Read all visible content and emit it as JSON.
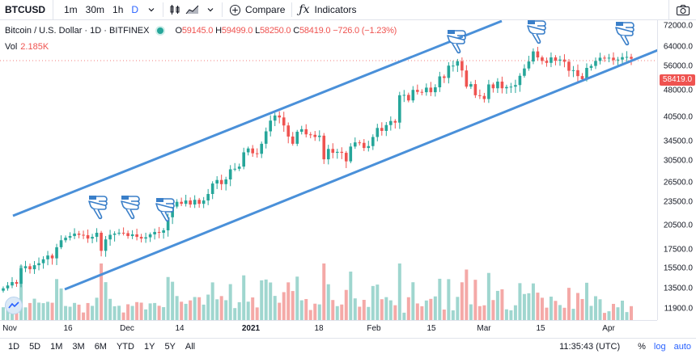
{
  "toolbar": {
    "symbol": "BTCUSD",
    "intervals": [
      "1m",
      "30m",
      "1h",
      "D"
    ],
    "active_interval": "D",
    "compare_label": "Compare",
    "indicators_label": "Indicators"
  },
  "legend": {
    "title": "Bitcoin / U.S. Dollar · 1D · BITFINEX",
    "open_k": "O",
    "open": "59145.0",
    "high_k": "H",
    "high": "59499.0",
    "low_k": "L",
    "low": "58250.0",
    "close_k": "C",
    "close": "58419.0",
    "change": "−726.0 (−1.23%)",
    "vol_label": "Vol",
    "vol_value": "2.185K"
  },
  "price_scale": {
    "labels": [
      "72000.0",
      "64000.0",
      "56000.0",
      "48000.0",
      "40500.0",
      "34500.0",
      "30500.0",
      "26500.0",
      "23500.0",
      "20500.0",
      "17500.0",
      "15500.0",
      "13500.0",
      "11900.0"
    ],
    "last_price": "58419.0"
  },
  "time_axis": {
    "labels": [
      "Nov",
      "16",
      "Dec",
      "14",
      "2021",
      "18",
      "Feb",
      "15",
      "Mar",
      "15",
      "Apr"
    ]
  },
  "range_bar": {
    "ranges": [
      "1D",
      "5D",
      "1M",
      "3M",
      "6M",
      "YTD",
      "1Y",
      "5Y",
      "All"
    ],
    "time": "11:35:43 (UTC)",
    "percent": "%",
    "log": "log",
    "auto": "auto"
  },
  "colors": {
    "up": "#26a69a",
    "down": "#ef5350",
    "trendline": "#4a90d9",
    "accent": "#2962ff"
  },
  "chart_data": {
    "type": "candlestick",
    "title": "Bitcoin / U.S. Dollar · 1D · BITFINEX",
    "xlabel": "",
    "ylabel": "",
    "y_scale": "log",
    "x_tick_labels": [
      "Nov",
      "16",
      "Dec",
      "14",
      "2021",
      "18",
      "Feb",
      "15",
      "Mar",
      "15",
      "Apr"
    ],
    "y_tick_labels": [
      "72000.0",
      "64000.0",
      "56000.0",
      "48000.0",
      "40500.0",
      "34500.0",
      "30500.0",
      "26500.0",
      "23500.0",
      "20500.0",
      "17500.0",
      "15500.0",
      "13500.0",
      "11900.0"
    ],
    "ylim": [
      11200,
      74000
    ],
    "closes": [
      13550,
      13800,
      14100,
      13950,
      15400,
      15600,
      15300,
      15700,
      15900,
      16300,
      16700,
      16400,
      17600,
      18400,
      18700,
      18900,
      19200,
      19050,
      19000,
      18600,
      18800,
      19300,
      17200,
      18500,
      19050,
      19200,
      19300,
      19250,
      18900,
      19100,
      18800,
      18600,
      18750,
      19100,
      19400,
      19300,
      19600,
      21300,
      22800,
      23500,
      23200,
      23700,
      23100,
      23800,
      23200,
      23700,
      24700,
      26400,
      27000,
      26300,
      27100,
      28900,
      29000,
      29400,
      32200,
      33000,
      32000,
      31900,
      34000,
      36800,
      39400,
      40700,
      40200,
      38200,
      35600,
      34000,
      36700,
      37300,
      36100,
      36000,
      35500,
      35800,
      30800,
      32900,
      32100,
      32300,
      32100,
      30400,
      33400,
      34300,
      34200,
      33100,
      33500,
      35500,
      37600,
      36900,
      38300,
      39300,
      38900,
      46300,
      46400,
      44800,
      47900,
      47300,
      47200,
      48600,
      47200,
      48700,
      52200,
      51700,
      55900,
      55900,
      57500,
      54200,
      48900,
      49700,
      46300,
      46100,
      45200,
      49600,
      48400,
      50500,
      48400,
      48800,
      48900,
      49400,
      52400,
      54900,
      57400,
      61200,
      58900,
      57600,
      56900,
      58900,
      57700,
      58100,
      57300,
      54100,
      54300,
      52300,
      51300,
      55100,
      55800,
      57600,
      58800,
      58700,
      58800,
      57900,
      58100,
      59000,
      59100,
      58400
    ]
  }
}
